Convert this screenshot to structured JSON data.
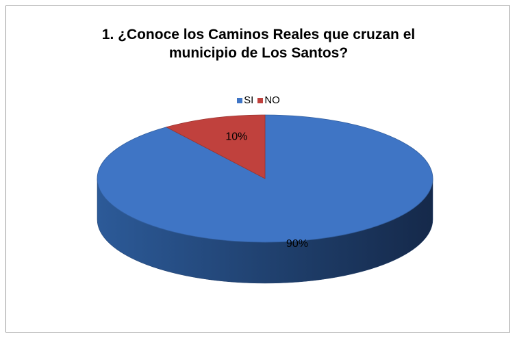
{
  "chart_data": {
    "type": "pie",
    "title_lines": [
      "1. ¿Conoce los Caminos Reales que cruzan el",
      "municipio de Los Santos?"
    ],
    "categories": [
      "SI",
      "NO"
    ],
    "values": [
      90,
      10
    ],
    "data_labels": [
      "90%",
      "10%"
    ],
    "colors": [
      "#3f75c5",
      "#c0413d"
    ],
    "legend_position": "top",
    "style": "3d"
  }
}
